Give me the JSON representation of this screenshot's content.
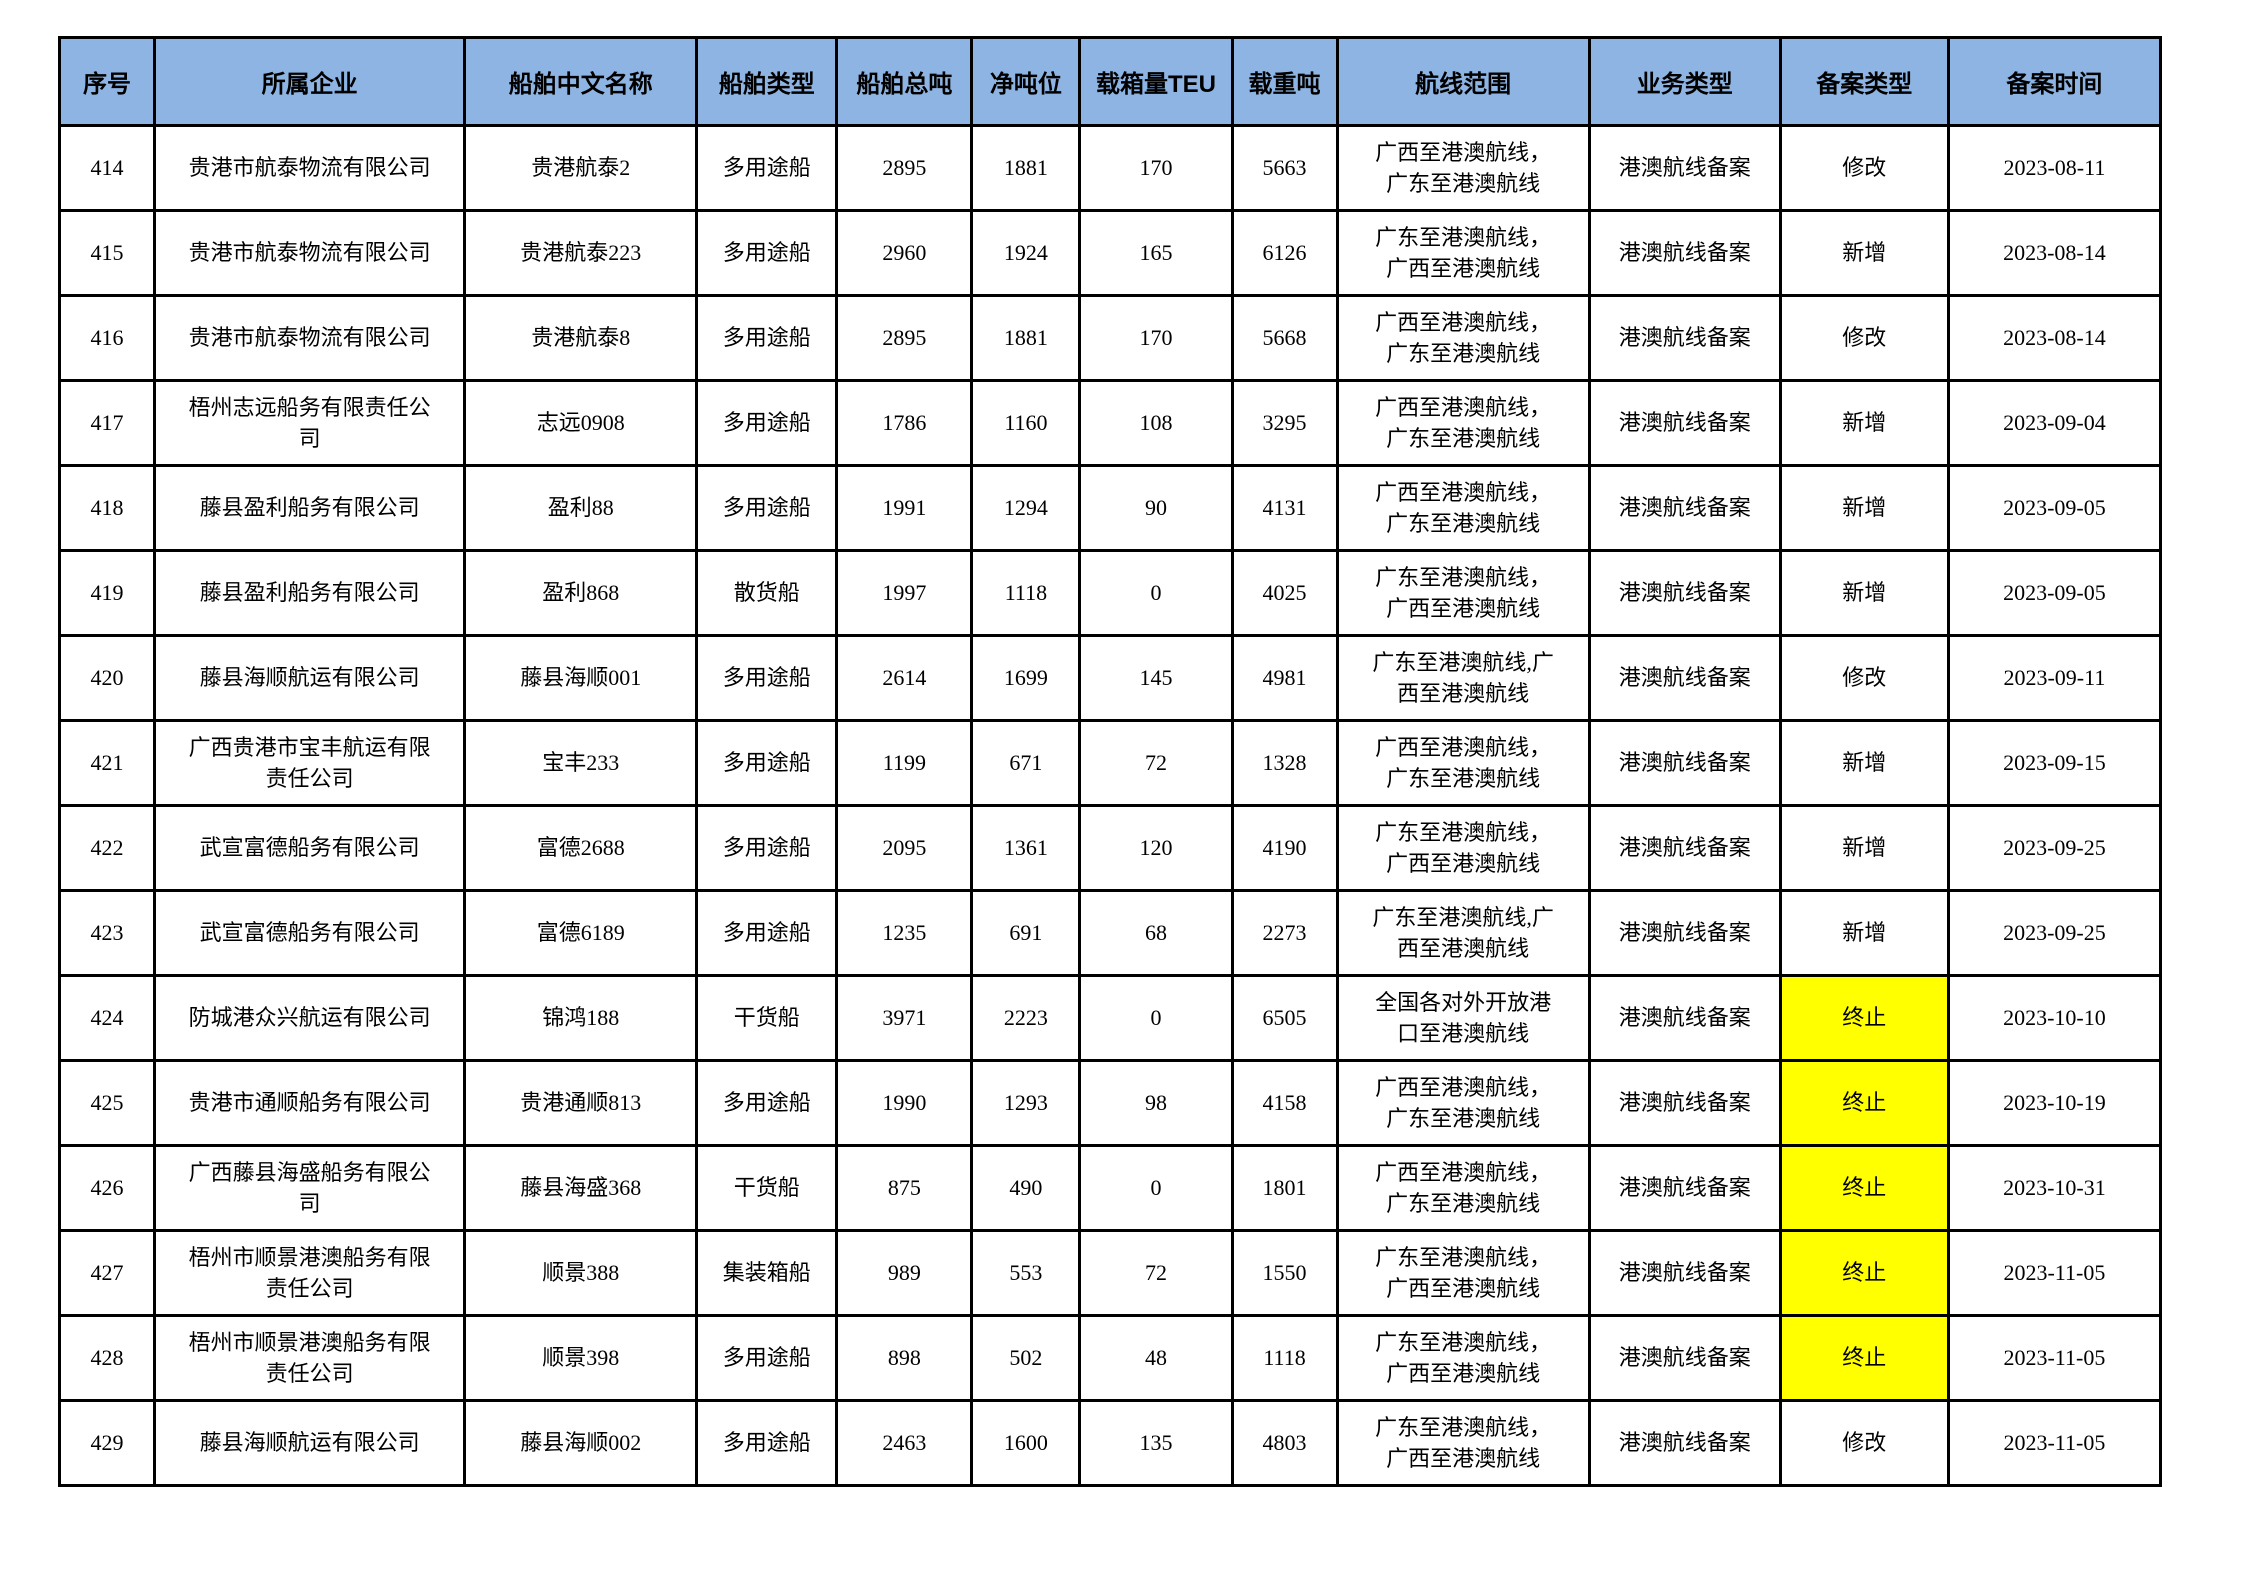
{
  "colors": {
    "header_bg": "#8db4e2",
    "highlight_bg": "#ffff00",
    "border": "#000000",
    "body_text": "#000000"
  },
  "table": {
    "columns": [
      {
        "key": "seq",
        "label": "序号"
      },
      {
        "key": "company",
        "label": "所属企业"
      },
      {
        "key": "ship_name",
        "label": "船舶中文名称"
      },
      {
        "key": "ship_type",
        "label": "船舶类型"
      },
      {
        "key": "gross_tonnage",
        "label": "船舶总吨"
      },
      {
        "key": "net_tonnage",
        "label": "净吨位"
      },
      {
        "key": "teu",
        "label": "载箱量TEU"
      },
      {
        "key": "deadweight",
        "label": "载重吨"
      },
      {
        "key": "route",
        "label": "航线范围"
      },
      {
        "key": "business_type",
        "label": "业务类型"
      },
      {
        "key": "record_type",
        "label": "备案类型"
      },
      {
        "key": "record_date",
        "label": "备案时间"
      }
    ],
    "rows": [
      {
        "seq": "414",
        "company": "贵港市航泰物流有限公司",
        "ship_name": "贵港航泰2",
        "ship_type": "多用途船",
        "gross_tonnage": "2895",
        "net_tonnage": "1881",
        "teu": "170",
        "deadweight": "5663",
        "route": "广西至港澳航线，\n广东至港澳航线",
        "business_type": "港澳航线备案",
        "record_type": "修改",
        "record_type_highlight": false,
        "record_date": "2023-08-11"
      },
      {
        "seq": "415",
        "company": "贵港市航泰物流有限公司",
        "ship_name": "贵港航泰223",
        "ship_type": "多用途船",
        "gross_tonnage": "2960",
        "net_tonnage": "1924",
        "teu": "165",
        "deadweight": "6126",
        "route": "广东至港澳航线，\n广西至港澳航线",
        "business_type": "港澳航线备案",
        "record_type": "新增",
        "record_type_highlight": false,
        "record_date": "2023-08-14"
      },
      {
        "seq": "416",
        "company": "贵港市航泰物流有限公司",
        "ship_name": "贵港航泰8",
        "ship_type": "多用途船",
        "gross_tonnage": "2895",
        "net_tonnage": "1881",
        "teu": "170",
        "deadweight": "5668",
        "route": "广西至港澳航线，\n广东至港澳航线",
        "business_type": "港澳航线备案",
        "record_type": "修改",
        "record_type_highlight": false,
        "record_date": "2023-08-14"
      },
      {
        "seq": "417",
        "company": "梧州志远船务有限责任公\n司",
        "ship_name": "志远0908",
        "ship_type": "多用途船",
        "gross_tonnage": "1786",
        "net_tonnage": "1160",
        "teu": "108",
        "deadweight": "3295",
        "route": "广西至港澳航线，\n广东至港澳航线",
        "business_type": "港澳航线备案",
        "record_type": "新增",
        "record_type_highlight": false,
        "record_date": "2023-09-04"
      },
      {
        "seq": "418",
        "company": "藤县盈利船务有限公司",
        "ship_name": "盈利88",
        "ship_type": "多用途船",
        "gross_tonnage": "1991",
        "net_tonnage": "1294",
        "teu": "90",
        "deadweight": "4131",
        "route": "广西至港澳航线，\n广东至港澳航线",
        "business_type": "港澳航线备案",
        "record_type": "新增",
        "record_type_highlight": false,
        "record_date": "2023-09-05"
      },
      {
        "seq": "419",
        "company": "藤县盈利船务有限公司",
        "ship_name": "盈利868",
        "ship_type": "散货船",
        "gross_tonnage": "1997",
        "net_tonnage": "1118",
        "teu": "0",
        "deadweight": "4025",
        "route": "广东至港澳航线，\n广西至港澳航线",
        "business_type": "港澳航线备案",
        "record_type": "新增",
        "record_type_highlight": false,
        "record_date": "2023-09-05"
      },
      {
        "seq": "420",
        "company": "藤县海顺航运有限公司",
        "ship_name": "藤县海顺001",
        "ship_type": "多用途船",
        "gross_tonnage": "2614",
        "net_tonnage": "1699",
        "teu": "145",
        "deadweight": "4981",
        "route": "广东至港澳航线,广\n西至港澳航线",
        "business_type": "港澳航线备案",
        "record_type": "修改",
        "record_type_highlight": false,
        "record_date": "2023-09-11"
      },
      {
        "seq": "421",
        "company": "广西贵港市宝丰航运有限\n责任公司",
        "ship_name": "宝丰233",
        "ship_type": "多用途船",
        "gross_tonnage": "1199",
        "net_tonnage": "671",
        "teu": "72",
        "deadweight": "1328",
        "route": "广西至港澳航线，\n广东至港澳航线",
        "business_type": "港澳航线备案",
        "record_type": "新增",
        "record_type_highlight": false,
        "record_date": "2023-09-15"
      },
      {
        "seq": "422",
        "company": "武宣富德船务有限公司",
        "ship_name": "富德2688",
        "ship_type": "多用途船",
        "gross_tonnage": "2095",
        "net_tonnage": "1361",
        "teu": "120",
        "deadweight": "4190",
        "route": "广东至港澳航线，\n广西至港澳航线",
        "business_type": "港澳航线备案",
        "record_type": "新增",
        "record_type_highlight": false,
        "record_date": "2023-09-25"
      },
      {
        "seq": "423",
        "company": "武宣富德船务有限公司",
        "ship_name": "富德6189",
        "ship_type": "多用途船",
        "gross_tonnage": "1235",
        "net_tonnage": "691",
        "teu": "68",
        "deadweight": "2273",
        "route": "广东至港澳航线,广\n西至港澳航线",
        "business_type": "港澳航线备案",
        "record_type": "新增",
        "record_type_highlight": false,
        "record_date": "2023-09-25"
      },
      {
        "seq": "424",
        "company": "防城港众兴航运有限公司",
        "ship_name": "锦鸿188",
        "ship_type": "干货船",
        "gross_tonnage": "3971",
        "net_tonnage": "2223",
        "teu": "0",
        "deadweight": "6505",
        "route": "全国各对外开放港\n口至港澳航线",
        "business_type": "港澳航线备案",
        "record_type": "终止",
        "record_type_highlight": true,
        "record_date": "2023-10-10"
      },
      {
        "seq": "425",
        "company": "贵港市通顺船务有限公司",
        "ship_name": "贵港通顺813",
        "ship_type": "多用途船",
        "gross_tonnage": "1990",
        "net_tonnage": "1293",
        "teu": "98",
        "deadweight": "4158",
        "route": "广西至港澳航线，\n广东至港澳航线",
        "business_type": "港澳航线备案",
        "record_type": "终止",
        "record_type_highlight": true,
        "record_date": "2023-10-19"
      },
      {
        "seq": "426",
        "company": "广西藤县海盛船务有限公\n司",
        "ship_name": "藤县海盛368",
        "ship_type": "干货船",
        "gross_tonnage": "875",
        "net_tonnage": "490",
        "teu": "0",
        "deadweight": "1801",
        "route": "广西至港澳航线，\n广东至港澳航线",
        "business_type": "港澳航线备案",
        "record_type": "终止",
        "record_type_highlight": true,
        "record_date": "2023-10-31"
      },
      {
        "seq": "427",
        "company": "梧州市顺景港澳船务有限\n责任公司",
        "ship_name": "顺景388",
        "ship_type": "集装箱船",
        "gross_tonnage": "989",
        "net_tonnage": "553",
        "teu": "72",
        "deadweight": "1550",
        "route": "广东至港澳航线，\n广西至港澳航线",
        "business_type": "港澳航线备案",
        "record_type": "终止",
        "record_type_highlight": true,
        "record_date": "2023-11-05"
      },
      {
        "seq": "428",
        "company": "梧州市顺景港澳船务有限\n责任公司",
        "ship_name": "顺景398",
        "ship_type": "多用途船",
        "gross_tonnage": "898",
        "net_tonnage": "502",
        "teu": "48",
        "deadweight": "1118",
        "route": "广东至港澳航线，\n广西至港澳航线",
        "business_type": "港澳航线备案",
        "record_type": "终止",
        "record_type_highlight": true,
        "record_date": "2023-11-05"
      },
      {
        "seq": "429",
        "company": "藤县海顺航运有限公司",
        "ship_name": "藤县海顺002",
        "ship_type": "多用途船",
        "gross_tonnage": "2463",
        "net_tonnage": "1600",
        "teu": "135",
        "deadweight": "4803",
        "route": "广东至港澳航线，\n广西至港澳航线",
        "business_type": "港澳航线备案",
        "record_type": "修改",
        "record_type_highlight": false,
        "record_date": "2023-11-05"
      }
    ]
  }
}
